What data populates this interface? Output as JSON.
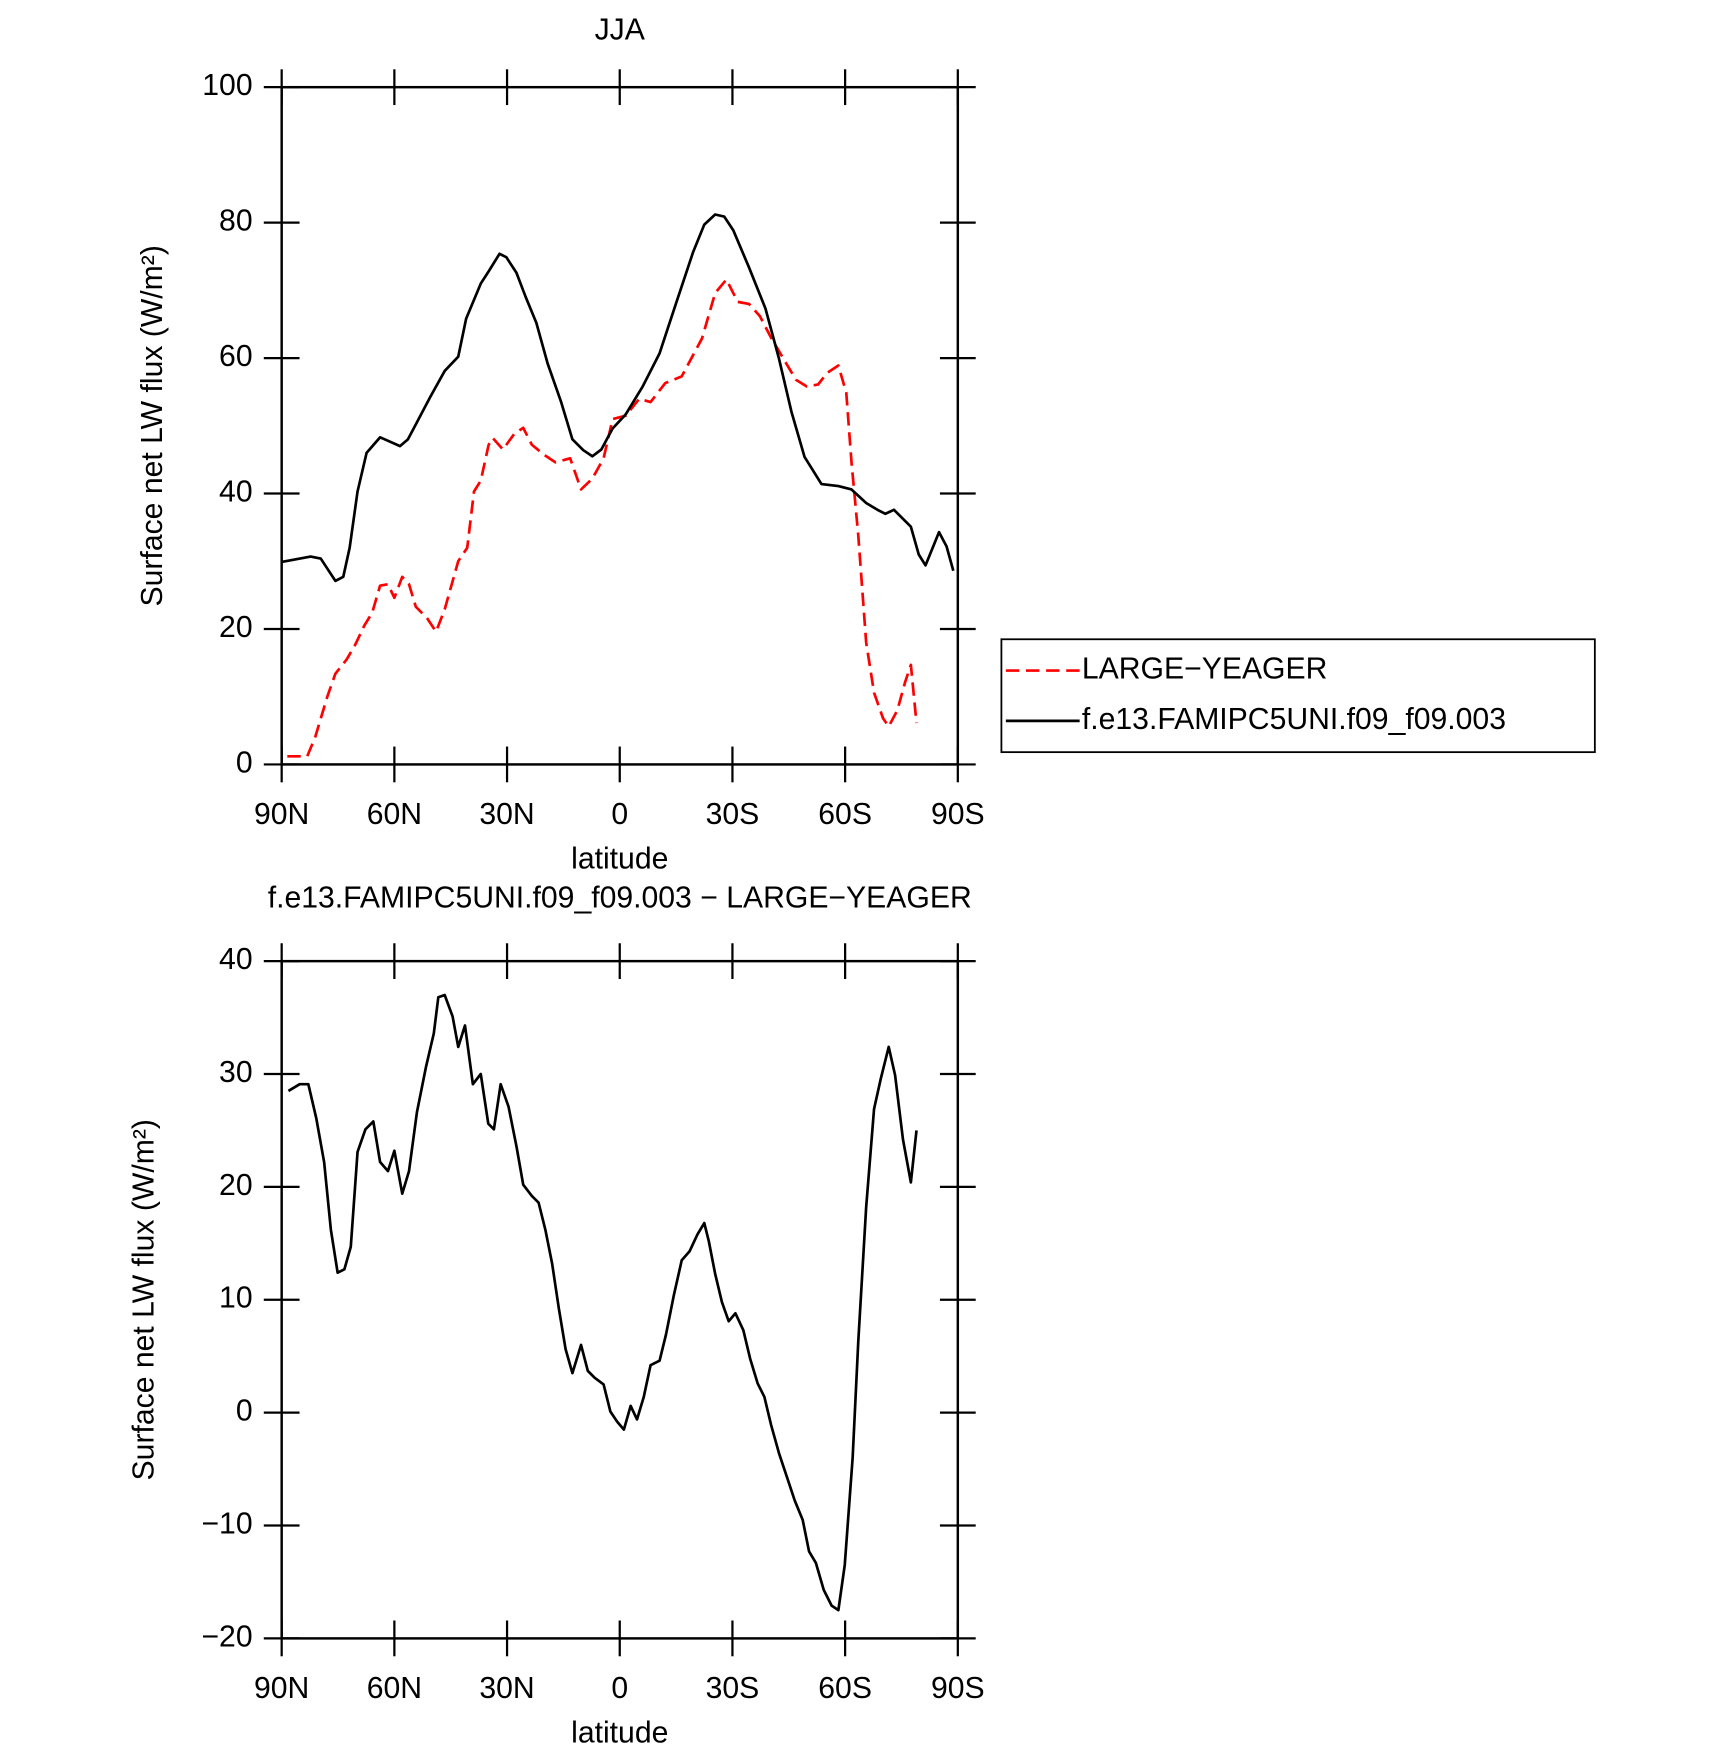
{
  "chart_data": [
    {
      "type": "line",
      "title": "JJA",
      "xlabel": "latitude",
      "ylabel": "Surface net LW flux (W/m²)",
      "xlim": [
        90,
        -90
      ],
      "xticks": [
        {
          "value": 90,
          "label": "90N"
        },
        {
          "value": 60,
          "label": "60N"
        },
        {
          "value": 30,
          "label": "30N"
        },
        0,
        {
          "value": -30,
          "label": "30S"
        },
        {
          "value": -60,
          "label": "60S"
        },
        {
          "value": -90,
          "label": "90S"
        }
      ],
      "ylim": [
        0,
        100
      ],
      "yticks": [
        0,
        20,
        40,
        60,
        80,
        100
      ],
      "legend": "right",
      "series": [
        {
          "name": "LARGE−YEAGER",
          "color": "#ff0000",
          "linestyle": "dashed",
          "x": [
            88.5,
            83.2,
            81.1,
            77.8,
            75.7,
            72.7,
            70.4,
            68.0,
            65.9,
            63.8,
            61.7,
            60.0,
            57.9,
            56.1,
            54.3,
            51.3,
            48.9,
            46.6,
            43.0,
            40.6,
            38.8,
            37.0,
            34.9,
            33.8,
            31.1,
            28.1,
            25.7,
            23.4,
            20.1,
            17.1,
            13.2,
            10.3,
            7.3,
            4.3,
            1.9,
            -1.6,
            -5.2,
            -8.2,
            -12.1,
            -16.5,
            -21.9,
            -25.4,
            -28.4,
            -31.4,
            -34.4,
            -37.3,
            -40.3,
            -43.9,
            -46.9,
            -49.8,
            -52.8,
            -55.2,
            -58.2,
            -60.3,
            -61.7,
            -63.5,
            -65.6,
            -67.7,
            -70.1,
            -71.6,
            -73.9,
            -76.0,
            -77.5,
            -79.0
          ],
          "values": [
            1.2,
            1.2,
            4.0,
            10.1,
            13.4,
            15.5,
            17.7,
            20.5,
            22.4,
            26.4,
            26.6,
            24.6,
            27.7,
            26.6,
            23.3,
            21.6,
            19.6,
            22.9,
            30.0,
            32.0,
            40.3,
            41.9,
            47.2,
            48.2,
            46.5,
            48.8,
            49.7,
            47.2,
            45.7,
            44.6,
            45.2,
            40.6,
            42.2,
            45.2,
            51.0,
            51.5,
            54.0,
            53.5,
            56.3,
            57.3,
            62.9,
            69.6,
            71.6,
            68.3,
            68.0,
            66.2,
            63.0,
            59.6,
            56.8,
            55.8,
            56.1,
            57.8,
            58.9,
            54.9,
            44.6,
            33.8,
            18.0,
            10.6,
            6.8,
            5.6,
            8.0,
            12.2,
            14.7,
            6.1
          ]
        },
        {
          "name": "f.e13.FAMIPC5UNI.f09_f09.003",
          "color": "#000000",
          "linestyle": "solid",
          "x": [
            90,
            82.3,
            79.6,
            75.7,
            73.6,
            71.9,
            69.8,
            67.4,
            63.8,
            58.5,
            56.4,
            54.3,
            50.4,
            46.6,
            43.0,
            40.9,
            37.0,
            34.9,
            32.0,
            30.2,
            27.5,
            25.1,
            22.2,
            19.2,
            15.6,
            12.6,
            9.7,
            7.3,
            4.9,
            1.9,
            -1.6,
            -6.1,
            -10.6,
            -15.0,
            -19.5,
            -22.5,
            -25.4,
            -27.8,
            -30.2,
            -34.4,
            -38.8,
            -42.4,
            -45.7,
            -49.2,
            -53.7,
            -58.2,
            -61.7,
            -65.6,
            -68.6,
            -70.7,
            -73.0,
            -77.5,
            -79.6,
            -81.4,
            -85.0,
            -87.0,
            -88.8
          ],
          "values": [
            29.9,
            30.7,
            30.4,
            27.1,
            27.7,
            32.0,
            40.3,
            46.0,
            48.3,
            47.0,
            48.0,
            50.2,
            54.3,
            58.1,
            60.2,
            65.8,
            71.0,
            72.8,
            75.4,
            74.9,
            72.6,
            69.1,
            65.2,
            59.2,
            53.5,
            48.0,
            46.4,
            45.5,
            46.5,
            49.6,
            51.7,
            55.8,
            60.7,
            68.1,
            75.6,
            79.7,
            81.2,
            80.9,
            78.9,
            73.4,
            67.3,
            59.9,
            52.1,
            45.4,
            41.4,
            41.1,
            40.6,
            38.6,
            37.6,
            37.0,
            37.6,
            35.1,
            31.0,
            29.4,
            34.3,
            32.2,
            28.6
          ]
        }
      ]
    },
    {
      "type": "line",
      "title": "f.e13.FAMIPC5UNI.f09_f09.003 − LARGE−YEAGER",
      "xlabel": "latitude",
      "ylabel": "Surface net LW flux (W/m²)",
      "xlim": [
        90,
        -90
      ],
      "xticks": [
        {
          "value": 90,
          "label": "90N"
        },
        {
          "value": 60,
          "label": "60N"
        },
        {
          "value": 30,
          "label": "30N"
        },
        0,
        {
          "value": -30,
          "label": "30S"
        },
        {
          "value": -60,
          "label": "60S"
        },
        {
          "value": -90,
          "label": "90S"
        }
      ],
      "ylim": [
        -20,
        40
      ],
      "yticks": [
        {
          "value": -20,
          "label": "−20"
        },
        {
          "value": -10,
          "label": "−10"
        },
        0,
        10,
        20,
        30,
        40
      ],
      "color": "#000000",
      "x": [
        88.2,
        85.2,
        82.9,
        80.8,
        78.7,
        76.9,
        75.1,
        73.3,
        71.6,
        69.8,
        67.7,
        65.6,
        63.8,
        61.7,
        60.0,
        57.9,
        56.1,
        54.0,
        51.6,
        49.5,
        48.3,
        46.6,
        44.5,
        43.0,
        41.2,
        39.1,
        37.0,
        35.0,
        33.5,
        31.7,
        29.6,
        27.5,
        25.7,
        23.4,
        21.6,
        19.8,
        18.0,
        16.2,
        14.4,
        12.6,
        10.3,
        8.5,
        6.7,
        4.3,
        2.5,
        0.7,
        -1.1,
        -2.9,
        -4.6,
        -6.4,
        -8.2,
        -10.6,
        -12.3,
        -14.4,
        -16.5,
        -18.6,
        -20.7,
        -22.5,
        -23.7,
        -25.4,
        -27.2,
        -29.0,
        -30.8,
        -32.9,
        -34.7,
        -36.7,
        -38.5,
        -40.3,
        -42.4,
        -44.5,
        -46.6,
        -48.7,
        -50.4,
        -52.2,
        -54.3,
        -56.4,
        -58.2,
        -59.9,
        -62.0,
        -63.5,
        -65.6,
        -67.7,
        -69.5,
        -71.6,
        -73.3,
        -75.4,
        -77.5,
        -79.0
      ],
      "values": [
        28.5,
        29.1,
        29.1,
        26.1,
        22.2,
        16.2,
        12.4,
        12.7,
        14.7,
        23.1,
        25.1,
        25.8,
        22.2,
        21.4,
        23.2,
        19.4,
        21.4,
        26.6,
        30.6,
        33.6,
        36.8,
        37.0,
        35.1,
        32.4,
        34.3,
        29.1,
        30.0,
        25.6,
        25.1,
        29.1,
        27.1,
        23.6,
        20.2,
        19.2,
        18.6,
        16.2,
        13.2,
        9.2,
        5.6,
        3.5,
        6.0,
        3.7,
        3.1,
        2.5,
        0.1,
        -0.8,
        -1.5,
        0.6,
        -0.6,
        1.4,
        4.2,
        4.6,
        6.9,
        10.4,
        13.5,
        14.3,
        15.8,
        16.8,
        15.2,
        12.3,
        9.8,
        8.1,
        8.8,
        7.3,
        4.8,
        2.6,
        1.4,
        -1.1,
        -3.6,
        -5.7,
        -7.8,
        -9.5,
        -12.3,
        -13.3,
        -15.7,
        -17.1,
        -17.5,
        -13.5,
        -4.0,
        6.3,
        18.2,
        26.9,
        29.6,
        32.4,
        29.9,
        24.2,
        20.4,
        25.0
      ]
    }
  ]
}
